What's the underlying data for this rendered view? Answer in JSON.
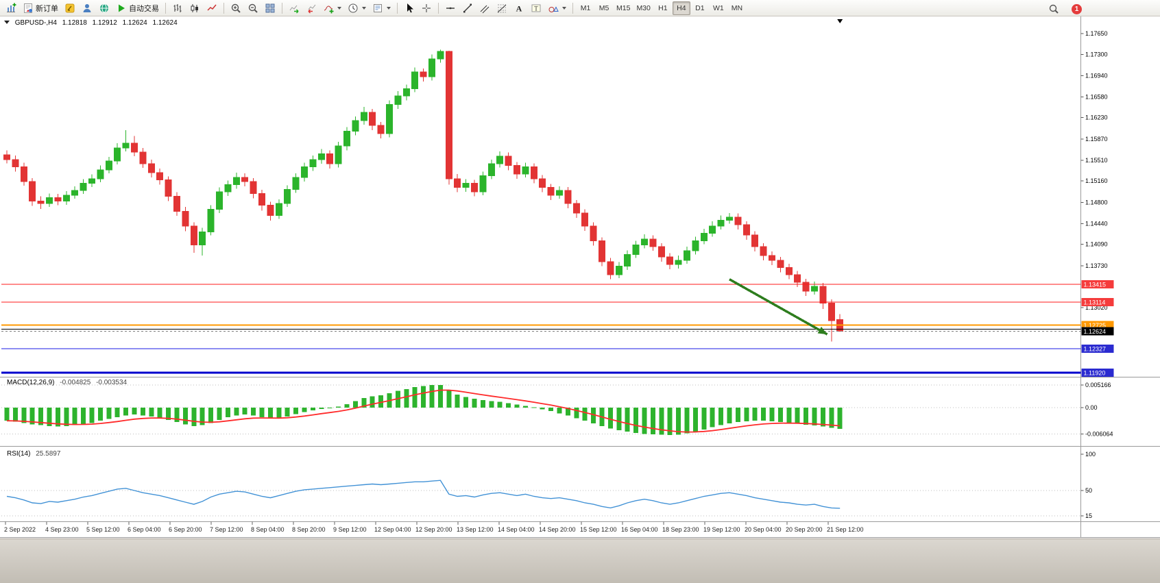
{
  "window": {
    "notification_count": "1"
  },
  "toolbar": {
    "items": [
      {
        "kind": "icon",
        "name": "new-chart-button",
        "icon": "chart-plus"
      },
      {
        "kind": "icon-text",
        "name": "new-order-button",
        "icon": "new-order",
        "label": "新订单"
      },
      {
        "kind": "icon",
        "name": "metaeditor-button",
        "icon": "metaeditor"
      },
      {
        "kind": "icon",
        "name": "community-button",
        "icon": "person"
      },
      {
        "kind": "icon",
        "name": "market-button",
        "icon": "globe"
      },
      {
        "kind": "icon-text",
        "name": "autotrading-button",
        "icon": "play",
        "label": "自动交易"
      },
      {
        "kind": "sep"
      },
      {
        "kind": "icon",
        "name": "bar-chart-button",
        "icon": "bars"
      },
      {
        "kind": "icon",
        "name": "candle-chart-button",
        "icon": "candles"
      },
      {
        "kind": "icon",
        "name": "line-chart-button",
        "icon": "line"
      },
      {
        "kind": "sep"
      },
      {
        "kind": "icon",
        "name": "zoom-in-button",
        "icon": "zoom-in"
      },
      {
        "kind": "icon",
        "name": "zoom-out-button",
        "icon": "zoom-out"
      },
      {
        "kind": "icon",
        "name": "tile-windows-button",
        "icon": "grid"
      },
      {
        "kind": "sep"
      },
      {
        "kind": "icon",
        "name": "auto-scroll-button",
        "icon": "chart-arrow-right"
      },
      {
        "kind": "icon",
        "name": "chart-shift-button",
        "icon": "chart-arrow-left"
      },
      {
        "kind": "icon-drop",
        "name": "indicators-button",
        "icon": "indicator-plus"
      },
      {
        "kind": "icon-drop",
        "name": "periods-button",
        "icon": "clock"
      },
      {
        "kind": "icon-drop",
        "name": "templates-button",
        "icon": "template"
      },
      {
        "kind": "sep"
      },
      {
        "kind": "icon",
        "name": "cursor-button",
        "icon": "cursor"
      },
      {
        "kind": "icon",
        "name": "crosshair-button",
        "icon": "crosshair"
      },
      {
        "kind": "sep"
      },
      {
        "kind": "icon",
        "name": "hline-tool-button",
        "icon": "hline"
      },
      {
        "kind": "icon",
        "name": "trendline-tool-button",
        "icon": "trendline"
      },
      {
        "kind": "icon",
        "name": "channel-tool-button",
        "icon": "channel"
      },
      {
        "kind": "icon",
        "name": "fibonacci-tool-button",
        "icon": "fibonacci"
      },
      {
        "kind": "icon",
        "name": "text-tool-button",
        "icon": "text",
        "glyph": "A"
      },
      {
        "kind": "icon",
        "name": "label-tool-button",
        "icon": "text-label",
        "glyph": "T"
      },
      {
        "kind": "icon-drop",
        "name": "arrows-tool-button",
        "icon": "shapes"
      },
      {
        "kind": "sep"
      },
      {
        "kind": "tf",
        "name": "timeframe-button-m1",
        "label": "M1",
        "active": false
      },
      {
        "kind": "tf",
        "name": "timeframe-button-m5",
        "label": "M5",
        "active": false
      },
      {
        "kind": "tf",
        "name": "timeframe-button-m15",
        "label": "M15",
        "active": false
      },
      {
        "kind": "tf",
        "name": "timeframe-button-m30",
        "label": "M30",
        "active": false
      },
      {
        "kind": "tf",
        "name": "timeframe-button-h1",
        "label": "H1",
        "active": false
      },
      {
        "kind": "tf",
        "name": "timeframe-button-h4",
        "label": "H4",
        "active": true
      },
      {
        "kind": "tf",
        "name": "timeframe-button-d1",
        "label": "D1",
        "active": false
      },
      {
        "kind": "tf",
        "name": "timeframe-button-w1",
        "label": "W1",
        "active": false
      },
      {
        "kind": "tf",
        "name": "timeframe-button-mn",
        "label": "MN",
        "active": false
      }
    ],
    "right": [
      {
        "kind": "icon",
        "name": "search-button",
        "icon": "magnifier"
      },
      {
        "kind": "badge",
        "name": "notification-badge",
        "count": "1"
      }
    ]
  },
  "chart": {
    "header": {
      "symbol_period": "GBPUSD-,H4",
      "open": "1.12818",
      "high": "1.12912",
      "low": "1.12624",
      "close": "1.12624"
    },
    "macd_label": {
      "title": "MACD(12,26,9)",
      "main_value": "-0.004825",
      "signal_value": "-0.003534"
    },
    "rsi_label": {
      "title": "RSI(14)",
      "value": "25.5897"
    }
  },
  "chart_data": [
    {
      "type": "candlestick",
      "symbol": "GBPUSD-",
      "timeframe": "H4",
      "up_color": "#2bb42b",
      "down_color": "#e23434",
      "ylim": [
        1.11865,
        1.17893
      ],
      "y_tick_labels": [
        "1.17650",
        "1.17300",
        "1.16940",
        "1.16580",
        "1.16230",
        "1.15870",
        "1.15510",
        "1.15160",
        "1.14800",
        "1.14440",
        "1.14090",
        "1.13730",
        "1.13020"
      ],
      "x_tick_labels": [
        "2 Sep 2022",
        "4 Sep 23:00",
        "5 Sep 12:00",
        "6 Sep 04:00",
        "6 Sep 20:00",
        "7 Sep 12:00",
        "8 Sep 04:00",
        "8 Sep 20:00",
        "9 Sep 12:00",
        "12 Sep 04:00",
        "12 Sep 20:00",
        "13 Sep 12:00",
        "14 Sep 04:00",
        "14 Sep 20:00",
        "15 Sep 12:00",
        "16 Sep 04:00",
        "18 Sep 23:00",
        "19 Sep 12:00",
        "20 Sep 04:00",
        "20 Sep 20:00",
        "21 Sep 12:00"
      ],
      "hlines": [
        {
          "price": 1.13415,
          "color": "#ff1a1a",
          "width": 1,
          "label": "1.13415",
          "badge_color": "#f53b3b"
        },
        {
          "price": 1.13114,
          "color": "#ff1a1a",
          "width": 1,
          "label": "1.13114",
          "badge_color": "#f53b3b"
        },
        {
          "price": 1.12725,
          "color": "#ff9800",
          "width": 2,
          "label": "1.12725",
          "badge_color": "#ff9800"
        },
        {
          "price": 1.1266,
          "color": "#000000",
          "width": 1,
          "label": null,
          "badge_color": null
        },
        {
          "price": 1.12327,
          "color": "#1a1ae6",
          "width": 1,
          "label": "1.12327",
          "badge_color": "#2b2bd0"
        },
        {
          "price": 1.1192,
          "color": "#0000cd",
          "width": 3,
          "label": "1.11920",
          "badge_color": "#2b2bd0"
        }
      ],
      "current_price": {
        "value": 1.12624,
        "label": "1.12624",
        "badge_color": "#000000"
      },
      "arrow": {
        "from_index": 85,
        "from_price": 1.135,
        "to_index": 96.5,
        "to_price": 1.1257,
        "color": "#2e7d1e"
      },
      "ohlc": [
        [
          1.156,
          1.1568,
          1.1546,
          1.1552
        ],
        [
          1.1552,
          1.1559,
          1.1532,
          1.154
        ],
        [
          1.154,
          1.1547,
          1.1508,
          1.1515
        ],
        [
          1.1515,
          1.1521,
          1.1474,
          1.1482
        ],
        [
          1.1482,
          1.149,
          1.1469,
          1.1478
        ],
        [
          1.1478,
          1.1495,
          1.1472,
          1.1488
        ],
        [
          1.1488,
          1.1494,
          1.1475,
          1.1482
        ],
        [
          1.1482,
          1.1499,
          1.1476,
          1.1492
        ],
        [
          1.1492,
          1.1507,
          1.1486,
          1.15
        ],
        [
          1.15,
          1.1519,
          1.1494,
          1.1512
        ],
        [
          1.1512,
          1.1527,
          1.1506,
          1.152
        ],
        [
          1.152,
          1.1542,
          1.1514,
          1.1535
        ],
        [
          1.1535,
          1.1557,
          1.1529,
          1.155
        ],
        [
          1.155,
          1.158,
          1.1544,
          1.1572
        ],
        [
          1.1572,
          1.1602,
          1.1566,
          1.158
        ],
        [
          1.158,
          1.1592,
          1.1558,
          1.1565
        ],
        [
          1.1565,
          1.1572,
          1.1538,
          1.1545
        ],
        [
          1.1545,
          1.1552,
          1.1522,
          1.153
        ],
        [
          1.153,
          1.1537,
          1.151,
          1.1518
        ],
        [
          1.1518,
          1.1524,
          1.1482,
          1.149
        ],
        [
          1.149,
          1.1497,
          1.1457,
          1.1465
        ],
        [
          1.1465,
          1.1472,
          1.1431,
          1.144
        ],
        [
          1.144,
          1.1446,
          1.1395,
          1.1408
        ],
        [
          1.1408,
          1.1437,
          1.139,
          1.143
        ],
        [
          1.143,
          1.1475,
          1.1424,
          1.1468
        ],
        [
          1.1468,
          1.1505,
          1.1462,
          1.1498
        ],
        [
          1.1498,
          1.1517,
          1.1491,
          1.151
        ],
        [
          1.151,
          1.153,
          1.1503,
          1.1522
        ],
        [
          1.1522,
          1.1529,
          1.1507,
          1.1515
        ],
        [
          1.1515,
          1.1521,
          1.1487,
          1.1495
        ],
        [
          1.1495,
          1.1501,
          1.1466,
          1.1475
        ],
        [
          1.1475,
          1.1481,
          1.1449,
          1.1458
        ],
        [
          1.1458,
          1.1485,
          1.1452,
          1.1478
        ],
        [
          1.1478,
          1.1509,
          1.1472,
          1.1502
        ],
        [
          1.1502,
          1.1529,
          1.1496,
          1.1522
        ],
        [
          1.1522,
          1.1547,
          1.1515,
          1.154
        ],
        [
          1.154,
          1.1559,
          1.1533,
          1.1552
        ],
        [
          1.1552,
          1.157,
          1.1545,
          1.1562
        ],
        [
          1.1562,
          1.1568,
          1.1537,
          1.1545
        ],
        [
          1.1545,
          1.1582,
          1.1539,
          1.1575
        ],
        [
          1.1575,
          1.1607,
          1.1568,
          1.16
        ],
        [
          1.16,
          1.1625,
          1.1593,
          1.1618
        ],
        [
          1.1618,
          1.1641,
          1.1611,
          1.1632
        ],
        [
          1.1632,
          1.1638,
          1.1602,
          1.161
        ],
        [
          1.161,
          1.1616,
          1.1588,
          1.1596
        ],
        [
          1.1596,
          1.1652,
          1.159,
          1.1645
        ],
        [
          1.1645,
          1.1668,
          1.1638,
          1.166
        ],
        [
          1.166,
          1.1679,
          1.1652,
          1.1672
        ],
        [
          1.1672,
          1.1708,
          1.1666,
          1.17
        ],
        [
          1.17,
          1.1706,
          1.1684,
          1.1692
        ],
        [
          1.1692,
          1.173,
          1.1686,
          1.1722
        ],
        [
          1.1722,
          1.1738,
          1.1716,
          1.1735
        ],
        [
          1.1735,
          1.1736,
          1.151,
          1.152
        ],
        [
          1.152,
          1.1528,
          1.1497,
          1.1505
        ],
        [
          1.1505,
          1.1519,
          1.1498,
          1.1512
        ],
        [
          1.1512,
          1.1518,
          1.149,
          1.1498
        ],
        [
          1.1498,
          1.1532,
          1.1492,
          1.1525
        ],
        [
          1.1525,
          1.1552,
          1.1519,
          1.1545
        ],
        [
          1.1545,
          1.1566,
          1.1539,
          1.1558
        ],
        [
          1.1558,
          1.1564,
          1.1534,
          1.1542
        ],
        [
          1.1542,
          1.1548,
          1.152,
          1.1528
        ],
        [
          1.1528,
          1.1547,
          1.1522,
          1.154
        ],
        [
          1.154,
          1.1546,
          1.1512,
          1.152
        ],
        [
          1.152,
          1.1526,
          1.1497,
          1.1505
        ],
        [
          1.1505,
          1.1511,
          1.1484,
          1.1492
        ],
        [
          1.1492,
          1.1507,
          1.1486,
          1.15
        ],
        [
          1.15,
          1.1506,
          1.147,
          1.1478
        ],
        [
          1.1478,
          1.1484,
          1.1454,
          1.1462
        ],
        [
          1.1462,
          1.1468,
          1.1432,
          1.144
        ],
        [
          1.144,
          1.1446,
          1.1407,
          1.1415
        ],
        [
          1.1415,
          1.1421,
          1.1372,
          1.138
        ],
        [
          1.138,
          1.1386,
          1.135,
          1.1358
        ],
        [
          1.1358,
          1.1379,
          1.1352,
          1.1372
        ],
        [
          1.1372,
          1.1399,
          1.1366,
          1.1392
        ],
        [
          1.1392,
          1.1415,
          1.1386,
          1.1408
        ],
        [
          1.1408,
          1.1426,
          1.1402,
          1.1418
        ],
        [
          1.1418,
          1.1424,
          1.1398,
          1.1405
        ],
        [
          1.1405,
          1.1411,
          1.138,
          1.1388
        ],
        [
          1.1388,
          1.1394,
          1.1367,
          1.1375
        ],
        [
          1.1375,
          1.139,
          1.1368,
          1.1382
        ],
        [
          1.1382,
          1.1405,
          1.1376,
          1.1398
        ],
        [
          1.1398,
          1.1422,
          1.1392,
          1.1415
        ],
        [
          1.1415,
          1.1435,
          1.1409,
          1.1428
        ],
        [
          1.1428,
          1.1448,
          1.1422,
          1.144
        ],
        [
          1.144,
          1.1458,
          1.1434,
          1.145
        ],
        [
          1.145,
          1.1462,
          1.1444,
          1.1455
        ],
        [
          1.1455,
          1.1461,
          1.1434,
          1.1442
        ],
        [
          1.1442,
          1.1448,
          1.1417,
          1.1425
        ],
        [
          1.1425,
          1.1431,
          1.1397,
          1.1405
        ],
        [
          1.1405,
          1.1411,
          1.1382,
          1.139
        ],
        [
          1.139,
          1.1397,
          1.1374,
          1.1382
        ],
        [
          1.1382,
          1.1388,
          1.1362,
          1.137
        ],
        [
          1.137,
          1.1376,
          1.135,
          1.1358
        ],
        [
          1.1358,
          1.1364,
          1.1337,
          1.1345
        ],
        [
          1.1345,
          1.1351,
          1.1322,
          1.133
        ],
        [
          1.133,
          1.1346,
          1.1324,
          1.1338
        ],
        [
          1.1338,
          1.1344,
          1.13,
          1.131
        ],
        [
          1.131,
          1.1316,
          1.1245,
          1.128
        ],
        [
          1.12818,
          1.12912,
          1.12624,
          1.12624
        ]
      ]
    },
    {
      "type": "bar",
      "name": "MACD(12,26,9)",
      "color": "#2db32d",
      "signal_color": "#ff2a2a",
      "y_ticks": [
        {
          "value": 0.005166,
          "label": "0.005166"
        },
        {
          "value": 0,
          "label": "0.00"
        },
        {
          "value": -0.006064,
          "label": "-0.006064"
        }
      ],
      "values": [
        -0.003,
        -0.0032,
        -0.0035,
        -0.0038,
        -0.004,
        -0.0042,
        -0.0043,
        -0.0042,
        -0.004,
        -0.0038,
        -0.0035,
        -0.003,
        -0.0026,
        -0.0022,
        -0.0018,
        -0.0016,
        -0.0018,
        -0.002,
        -0.0024,
        -0.0028,
        -0.0033,
        -0.0038,
        -0.0042,
        -0.004,
        -0.0035,
        -0.0028,
        -0.0022,
        -0.0018,
        -0.0016,
        -0.0018,
        -0.0022,
        -0.0025,
        -0.0024,
        -0.002,
        -0.0015,
        -0.001,
        -0.0006,
        -0.0003,
        -0.0001,
        0.0002,
        0.0008,
        0.0015,
        0.0022,
        0.0026,
        0.0028,
        0.0033,
        0.0038,
        0.0042,
        0.0047,
        0.0049,
        0.0052,
        0.0052,
        0.004,
        0.003,
        0.0024,
        0.002,
        0.0017,
        0.0015,
        0.0013,
        0.001,
        0.0007,
        0.0004,
        0.0001,
        -0.0004,
        -0.0008,
        -0.0013,
        -0.0018,
        -0.0024,
        -0.003,
        -0.0036,
        -0.0042,
        -0.0048,
        -0.0052,
        -0.0055,
        -0.0058,
        -0.006,
        -0.0061,
        -0.0062,
        -0.0063,
        -0.0062,
        -0.0059,
        -0.0055,
        -0.005,
        -0.0045,
        -0.004,
        -0.0036,
        -0.0033,
        -0.0031,
        -0.003,
        -0.003,
        -0.0031,
        -0.0033,
        -0.0035,
        -0.0037,
        -0.0039,
        -0.0041,
        -0.0043,
        -0.0046,
        -0.00483
      ]
    },
    {
      "type": "line",
      "name": "RSI(14)",
      "color": "#4292d6",
      "y_ticks": [
        {
          "value": 100,
          "label": "100"
        },
        {
          "value": 50,
          "label": "50"
        },
        {
          "value": 15,
          "label": "15"
        }
      ],
      "levels": [
        50,
        15
      ],
      "values": [
        42,
        40,
        37,
        33,
        32,
        35,
        34,
        36,
        38,
        41,
        43,
        46,
        49,
        52,
        53,
        50,
        47,
        45,
        43,
        40,
        37,
        34,
        31,
        35,
        41,
        45,
        47,
        49,
        48,
        45,
        42,
        40,
        43,
        46,
        49,
        51,
        52,
        53,
        54,
        55,
        56,
        57,
        58,
        59,
        58,
        59,
        60,
        61,
        62,
        62,
        63,
        64,
        45,
        42,
        43,
        41,
        44,
        46,
        47,
        45,
        43,
        45,
        42,
        40,
        39,
        40,
        38,
        36,
        33,
        31,
        28,
        26,
        29,
        33,
        36,
        38,
        36,
        33,
        31,
        33,
        36,
        39,
        42,
        44,
        46,
        47,
        45,
        43,
        40,
        38,
        36,
        34,
        33,
        31,
        30,
        31,
        28,
        26,
        25.59
      ]
    }
  ]
}
